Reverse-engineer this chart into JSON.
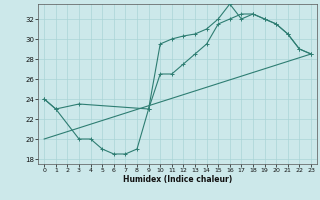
{
  "title": "",
  "xlabel": "Humidex (Indice chaleur)",
  "bg_color": "#cce8ea",
  "grid_color": "#aad4d6",
  "line_color": "#2e7d72",
  "xlim": [
    -0.5,
    23.5
  ],
  "ylim": [
    17.5,
    33.5
  ],
  "xticks": [
    0,
    1,
    2,
    3,
    4,
    5,
    6,
    7,
    8,
    9,
    10,
    11,
    12,
    13,
    14,
    15,
    16,
    17,
    18,
    19,
    20,
    21,
    22,
    23
  ],
  "yticks": [
    18,
    20,
    22,
    24,
    26,
    28,
    30,
    32
  ],
  "line1_x": [
    0,
    1,
    3,
    4,
    5,
    6,
    7,
    8,
    9,
    10,
    11,
    12,
    13,
    14,
    15,
    16,
    17,
    18,
    19,
    20,
    21,
    22,
    23
  ],
  "line1_y": [
    24.0,
    23.0,
    20.0,
    20.0,
    19.0,
    18.5,
    18.5,
    19.0,
    23.0,
    29.5,
    30.0,
    30.3,
    30.5,
    31.0,
    32.0,
    33.5,
    32.0,
    32.5,
    32.0,
    31.5,
    30.5,
    29.0,
    28.5
  ],
  "line2_x": [
    0,
    1,
    3,
    9,
    10,
    11,
    12,
    13,
    14,
    15,
    16,
    17,
    18,
    19,
    20,
    21,
    22,
    23
  ],
  "line2_y": [
    24.0,
    23.0,
    23.5,
    23.0,
    26.5,
    26.5,
    27.5,
    28.5,
    29.5,
    31.5,
    32.0,
    32.5,
    32.5,
    32.0,
    31.5,
    30.5,
    29.0,
    28.5
  ],
  "line3_x": [
    0,
    23
  ],
  "line3_y": [
    20.0,
    28.5
  ],
  "figsize": [
    3.2,
    2.0
  ],
  "dpi": 100
}
